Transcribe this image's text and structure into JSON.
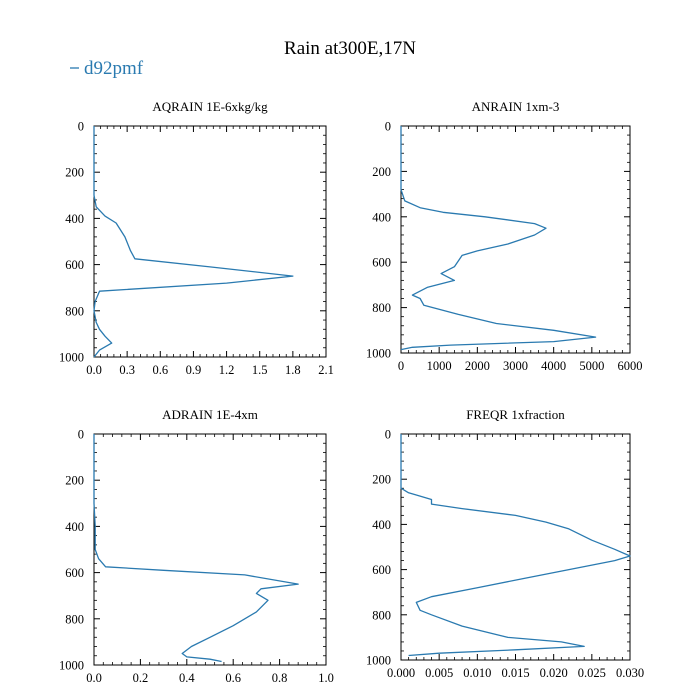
{
  "figure": {
    "title": "Rain at300E,17N",
    "legend": {
      "label": "d92pmf",
      "color": "#2a7ab0",
      "placement": "top-left"
    }
  },
  "chart_data": [
    {
      "type": "line",
      "title": "AQRAIN  1E-6xkg/kg",
      "xlabel": "",
      "ylabel": "",
      "xlim": [
        0,
        2.1
      ],
      "ylim": [
        1000,
        0
      ],
      "y_inverted": true,
      "xticks": [
        "0.0",
        "0.3",
        "0.6",
        "0.9",
        "1.2",
        "1.5",
        "1.8",
        "2.1"
      ],
      "yticks": [
        "0",
        "200",
        "400",
        "600",
        "800",
        "1000"
      ],
      "series": [
        {
          "color": "#2a7ab0",
          "points": [
            [
              0,
              0
            ],
            [
              0,
              150
            ],
            [
              0,
              300
            ],
            [
              0.02,
              350
            ],
            [
              0.1,
              390
            ],
            [
              0.2,
              420
            ],
            [
              0.28,
              480
            ],
            [
              0.33,
              540
            ],
            [
              0.37,
              575
            ],
            [
              1.05,
              610
            ],
            [
              1.8,
              650
            ],
            [
              1.2,
              680
            ],
            [
              0.05,
              715
            ],
            [
              0.01,
              760
            ],
            [
              0.0,
              800
            ],
            [
              0.02,
              850
            ],
            [
              0.05,
              880
            ],
            [
              0.1,
              910
            ],
            [
              0.16,
              940
            ],
            [
              0.05,
              970
            ],
            [
              0,
              1000
            ]
          ]
        }
      ]
    },
    {
      "type": "line",
      "title": "ANRAIN  1xm-3",
      "xlabel": "",
      "ylabel": "",
      "xlim": [
        0,
        6000
      ],
      "ylim": [
        1000,
        0
      ],
      "y_inverted": true,
      "xticks": [
        "0",
        "1000",
        "2000",
        "3000",
        "4000",
        "5000",
        "6000"
      ],
      "yticks": [
        "0",
        "200",
        "400",
        "600",
        "800",
        "1000"
      ],
      "series": [
        {
          "color": "#2a7ab0",
          "points": [
            [
              0,
              0
            ],
            [
              0,
              150
            ],
            [
              0,
              280
            ],
            [
              100,
              330
            ],
            [
              500,
              360
            ],
            [
              1100,
              380
            ],
            [
              2200,
              400
            ],
            [
              3500,
              430
            ],
            [
              3800,
              450
            ],
            [
              3500,
              480
            ],
            [
              2800,
              520
            ],
            [
              2000,
              550
            ],
            [
              1600,
              570
            ],
            [
              1400,
              620
            ],
            [
              1050,
              650
            ],
            [
              1400,
              680
            ],
            [
              700,
              710
            ],
            [
              300,
              745
            ],
            [
              500,
              760
            ],
            [
              600,
              790
            ],
            [
              1500,
              830
            ],
            [
              2500,
              870
            ],
            [
              4000,
              900
            ],
            [
              5100,
              930
            ],
            [
              4000,
              950
            ],
            [
              1300,
              965
            ],
            [
              300,
              975
            ],
            [
              0,
              985
            ]
          ]
        }
      ]
    },
    {
      "type": "line",
      "title": "ADRAIN  1E-4xm",
      "xlabel": "",
      "ylabel": "",
      "xlim": [
        0,
        1.0
      ],
      "ylim": [
        1000,
        0
      ],
      "y_inverted": true,
      "xticks": [
        "0.0",
        "0.2",
        "0.4",
        "0.6",
        "0.8",
        "1.0"
      ],
      "yticks": [
        "0",
        "200",
        "400",
        "600",
        "800",
        "1000"
      ],
      "series": [
        {
          "color": "#2a7ab0",
          "points": [
            [
              0,
              0
            ],
            [
              0,
              150
            ],
            [
              0,
              300
            ],
            [
              0.005,
              400
            ],
            [
              0.005,
              500
            ],
            [
              0.02,
              540
            ],
            [
              0.05,
              575
            ],
            [
              0.3,
              590
            ],
            [
              0.65,
              610
            ],
            [
              0.88,
              650
            ],
            [
              0.72,
              670
            ],
            [
              0.7,
              690
            ],
            [
              0.75,
              720
            ],
            [
              0.7,
              770
            ],
            [
              0.6,
              830
            ],
            [
              0.5,
              880
            ],
            [
              0.42,
              920
            ],
            [
              0.38,
              950
            ],
            [
              0.4,
              965
            ],
            [
              0.5,
              975
            ],
            [
              0.55,
              985
            ]
          ]
        }
      ]
    },
    {
      "type": "line",
      "title": "FREQR  1xfraction",
      "xlabel": "",
      "ylabel": "",
      "xlim": [
        0,
        0.03
      ],
      "ylim": [
        1000,
        0
      ],
      "y_inverted": true,
      "xticks": [
        "0.000",
        "0.005",
        "0.010",
        "0.015",
        "0.020",
        "0.025",
        "0.030"
      ],
      "yticks": [
        "0",
        "200",
        "400",
        "600",
        "800",
        "1000"
      ],
      "series": [
        {
          "color": "#2a7ab0",
          "points": [
            [
              0,
              0
            ],
            [
              0,
              150
            ],
            [
              0,
              240
            ],
            [
              0.001,
              260
            ],
            [
              0.002,
              270
            ],
            [
              0.004,
              290
            ],
            [
              0.004,
              310
            ],
            [
              0.008,
              330
            ],
            [
              0.015,
              360
            ],
            [
              0.019,
              390
            ],
            [
              0.022,
              420
            ],
            [
              0.025,
              470
            ],
            [
              0.028,
              510
            ],
            [
              0.03,
              540
            ],
            [
              0.028,
              560
            ],
            [
              0.022,
              600
            ],
            [
              0.016,
              640
            ],
            [
              0.01,
              680
            ],
            [
              0.004,
              720
            ],
            [
              0.002,
              745
            ],
            [
              0.0025,
              780
            ],
            [
              0.004,
              800
            ],
            [
              0.008,
              850
            ],
            [
              0.014,
              900
            ],
            [
              0.021,
              920
            ],
            [
              0.024,
              940
            ],
            [
              0.015,
              955
            ],
            [
              0.005,
              970
            ],
            [
              0.001,
              980
            ]
          ]
        }
      ]
    }
  ]
}
